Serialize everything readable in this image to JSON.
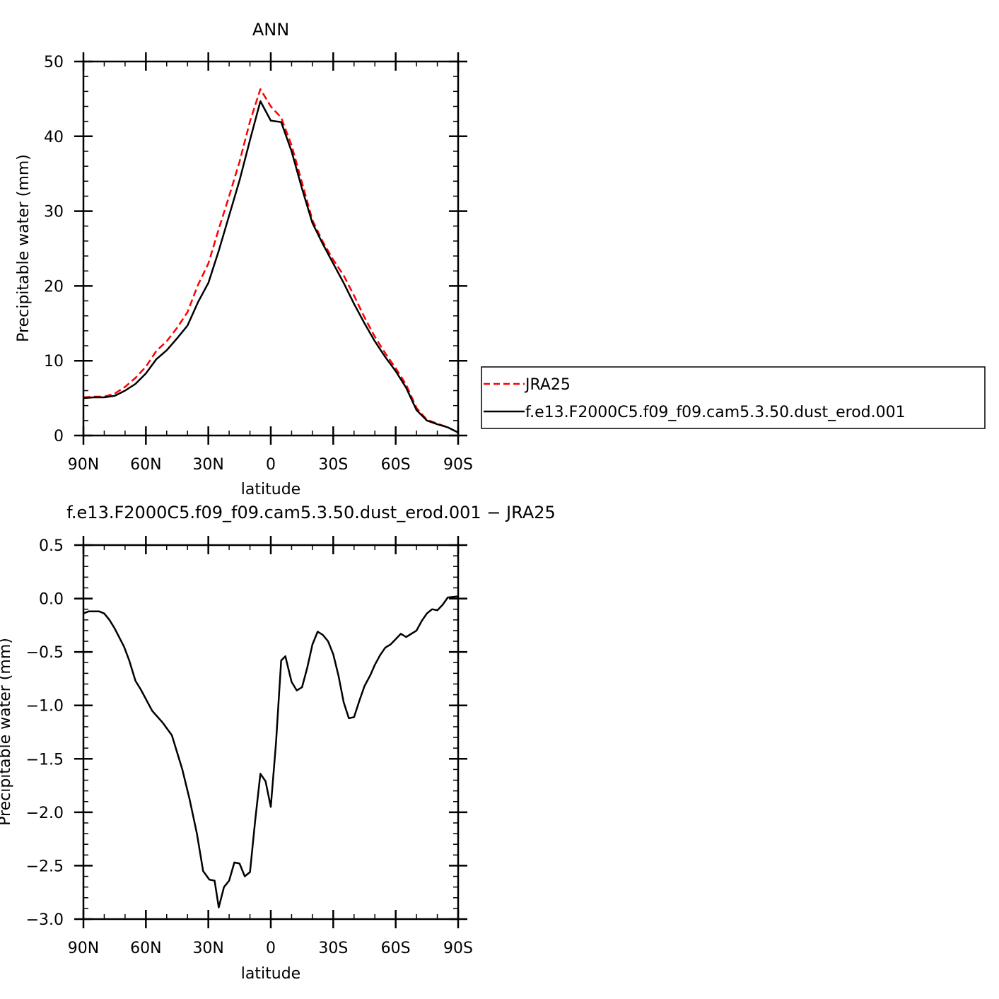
{
  "chart_data": [
    {
      "type": "line",
      "title": "ANN",
      "xlabel": "latitude",
      "ylabel": "Precipitable water (mm)",
      "xlim": [
        90,
        -90
      ],
      "ylim": [
        0,
        50
      ],
      "x_ticks": [
        {
          "v": 90,
          "label": "90N"
        },
        {
          "v": 60,
          "label": "60N"
        },
        {
          "v": 30,
          "label": "30N"
        },
        {
          "v": 0,
          "label": "0"
        },
        {
          "v": -30,
          "label": "30S"
        },
        {
          "v": -60,
          "label": "60S"
        },
        {
          "v": -90,
          "label": "90S"
        }
      ],
      "y_ticks": [
        {
          "v": 0,
          "label": "0"
        },
        {
          "v": 10,
          "label": "10"
        },
        {
          "v": 20,
          "label": "20"
        },
        {
          "v": 30,
          "label": "30"
        },
        {
          "v": 40,
          "label": "40"
        },
        {
          "v": 50,
          "label": "50"
        }
      ],
      "x": [
        90,
        85,
        80,
        75,
        70,
        65,
        60,
        55,
        50,
        45,
        40,
        35,
        30,
        25,
        20,
        15,
        10,
        5,
        0,
        -5,
        -10,
        -15,
        -20,
        -25,
        -30,
        -35,
        -40,
        -45,
        -50,
        -55,
        -60,
        -65,
        -70,
        -75,
        -80,
        -85,
        -90
      ],
      "series": [
        {
          "name": "JRA25",
          "color": "#ff0000",
          "dash": true,
          "values": [
            5.1,
            5.2,
            5.2,
            5.6,
            6.5,
            7.7,
            9.2,
            11.3,
            12.6,
            14.4,
            16.5,
            20.1,
            23.0,
            27.6,
            32.0,
            36.6,
            42.0,
            46.3,
            44.0,
            42.5,
            38.8,
            33.8,
            28.8,
            25.9,
            23.5,
            21.4,
            18.7,
            15.8,
            13.2,
            11.0,
            9.0,
            6.8,
            3.7,
            2.1,
            1.6,
            1.1,
            0.4
          ]
        },
        {
          "name": "f.e13.F2000C5.f09_f09.cam5.3.50.dust_erod.001",
          "color": "#000000",
          "dash": false,
          "values": [
            5.0,
            5.1,
            5.1,
            5.3,
            6.0,
            6.9,
            8.3,
            10.2,
            11.4,
            13.0,
            14.7,
            17.8,
            20.4,
            24.7,
            29.4,
            34.1,
            39.5,
            44.7,
            42.1,
            41.9,
            38.0,
            33.0,
            28.4,
            25.6,
            23.0,
            20.4,
            17.6,
            15.0,
            12.6,
            10.5,
            8.6,
            6.4,
            3.4,
            2.0,
            1.5,
            1.1,
            0.4
          ]
        }
      ],
      "legend": "right"
    },
    {
      "type": "line",
      "title": "f.e13.F2000C5.f09_f09.cam5.3.50.dust_erod.001 − JRA25",
      "xlabel": "latitude",
      "ylabel": "Precipitable water (mm)",
      "xlim": [
        90,
        -90
      ],
      "ylim": [
        -3.0,
        0.5
      ],
      "x_ticks": [
        {
          "v": 90,
          "label": "90N"
        },
        {
          "v": 60,
          "label": "60N"
        },
        {
          "v": 30,
          "label": "30N"
        },
        {
          "v": 0,
          "label": "0"
        },
        {
          "v": -30,
          "label": "30S"
        },
        {
          "v": -60,
          "label": "60S"
        },
        {
          "v": -90,
          "label": "90S"
        }
      ],
      "y_ticks": [
        {
          "v": 0.5,
          "label": "0.5"
        },
        {
          "v": 0,
          "label": "0.0"
        },
        {
          "v": -0.5,
          "label": "−0.5"
        },
        {
          "v": -1,
          "label": "−1.0"
        },
        {
          "v": -1.5,
          "label": "−1.5"
        },
        {
          "v": -2,
          "label": "−2.0"
        },
        {
          "v": -2.5,
          "label": "−2.5"
        },
        {
          "v": -3,
          "label": "−3.0"
        }
      ],
      "x": [
        90,
        87.5,
        82.5,
        80,
        77.5,
        75,
        70.5,
        68,
        65,
        62.5,
        57,
        52,
        47.5,
        42.5,
        39,
        35.5,
        32.5,
        29.5,
        27,
        25,
        22.5,
        20,
        17.5,
        15,
        12.5,
        10,
        7.5,
        5,
        2.5,
        0,
        -2.5,
        -5,
        -7,
        -10,
        -12.5,
        -15,
        -17.5,
        -20,
        -22.5,
        -25,
        -27.5,
        -30,
        -32.5,
        -35,
        -37.5,
        -40,
        -42.5,
        -45,
        -48,
        -50,
        -52.5,
        -55,
        -57.5,
        -60,
        -62.5,
        -65,
        -70,
        -72.5,
        -75,
        -77.5,
        -80,
        -82.5,
        -85,
        -90
      ],
      "series": [
        {
          "color": "#000000",
          "values": [
            -0.14,
            -0.12,
            -0.12,
            -0.14,
            -0.2,
            -0.28,
            -0.45,
            -0.58,
            -0.77,
            -0.85,
            -1.05,
            -1.16,
            -1.28,
            -1.6,
            -1.88,
            -2.2,
            -2.55,
            -2.63,
            -2.64,
            -2.89,
            -2.7,
            -2.64,
            -2.47,
            -2.48,
            -2.6,
            -2.56,
            -2.08,
            -1.64,
            -1.71,
            -1.95,
            -1.35,
            -0.58,
            -0.54,
            -0.78,
            -0.86,
            -0.83,
            -0.65,
            -0.43,
            -0.31,
            -0.34,
            -0.4,
            -0.52,
            -0.72,
            -0.97,
            -1.12,
            -1.11,
            -0.96,
            -0.82,
            -0.71,
            -0.62,
            -0.53,
            -0.46,
            -0.43,
            -0.38,
            -0.33,
            -0.36,
            -0.3,
            -0.21,
            -0.14,
            -0.1,
            -0.11,
            -0.06,
            0.01,
            0.02
          ]
        }
      ]
    }
  ]
}
